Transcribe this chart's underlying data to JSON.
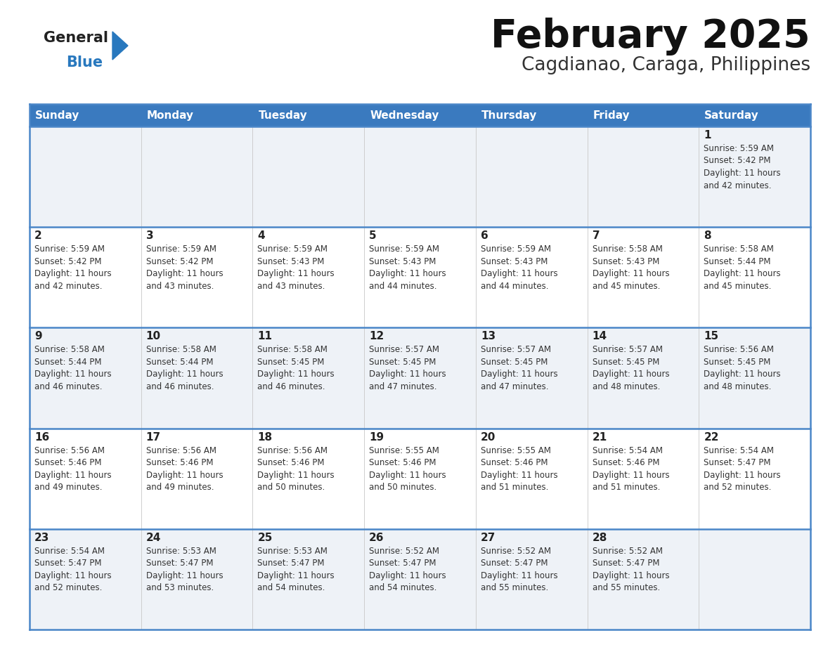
{
  "title": "February 2025",
  "subtitle": "Cagdianao, Caraga, Philippines",
  "days_of_week": [
    "Sunday",
    "Monday",
    "Tuesday",
    "Wednesday",
    "Thursday",
    "Friday",
    "Saturday"
  ],
  "header_bg": "#3a7abf",
  "header_text_color": "#ffffff",
  "row_bg_odd": "#eef2f7",
  "row_bg_even": "#ffffff",
  "cell_border_color": "#4a86c8",
  "day_number_color": "#222222",
  "info_text_color": "#333333",
  "title_color": "#111111",
  "subtitle_color": "#333333",
  "logo_general_color": "#222222",
  "logo_blue_color": "#2878be",
  "calendar_data": [
    {
      "day": 1,
      "col": 6,
      "row": 0,
      "sunrise": "5:59 AM",
      "sunset": "5:42 PM",
      "daylight_hours": 11,
      "daylight_minutes": 42
    },
    {
      "day": 2,
      "col": 0,
      "row": 1,
      "sunrise": "5:59 AM",
      "sunset": "5:42 PM",
      "daylight_hours": 11,
      "daylight_minutes": 42
    },
    {
      "day": 3,
      "col": 1,
      "row": 1,
      "sunrise": "5:59 AM",
      "sunset": "5:42 PM",
      "daylight_hours": 11,
      "daylight_minutes": 43
    },
    {
      "day": 4,
      "col": 2,
      "row": 1,
      "sunrise": "5:59 AM",
      "sunset": "5:43 PM",
      "daylight_hours": 11,
      "daylight_minutes": 43
    },
    {
      "day": 5,
      "col": 3,
      "row": 1,
      "sunrise": "5:59 AM",
      "sunset": "5:43 PM",
      "daylight_hours": 11,
      "daylight_minutes": 44
    },
    {
      "day": 6,
      "col": 4,
      "row": 1,
      "sunrise": "5:59 AM",
      "sunset": "5:43 PM",
      "daylight_hours": 11,
      "daylight_minutes": 44
    },
    {
      "day": 7,
      "col": 5,
      "row": 1,
      "sunrise": "5:58 AM",
      "sunset": "5:43 PM",
      "daylight_hours": 11,
      "daylight_minutes": 45
    },
    {
      "day": 8,
      "col": 6,
      "row": 1,
      "sunrise": "5:58 AM",
      "sunset": "5:44 PM",
      "daylight_hours": 11,
      "daylight_minutes": 45
    },
    {
      "day": 9,
      "col": 0,
      "row": 2,
      "sunrise": "5:58 AM",
      "sunset": "5:44 PM",
      "daylight_hours": 11,
      "daylight_minutes": 46
    },
    {
      "day": 10,
      "col": 1,
      "row": 2,
      "sunrise": "5:58 AM",
      "sunset": "5:44 PM",
      "daylight_hours": 11,
      "daylight_minutes": 46
    },
    {
      "day": 11,
      "col": 2,
      "row": 2,
      "sunrise": "5:58 AM",
      "sunset": "5:45 PM",
      "daylight_hours": 11,
      "daylight_minutes": 46
    },
    {
      "day": 12,
      "col": 3,
      "row": 2,
      "sunrise": "5:57 AM",
      "sunset": "5:45 PM",
      "daylight_hours": 11,
      "daylight_minutes": 47
    },
    {
      "day": 13,
      "col": 4,
      "row": 2,
      "sunrise": "5:57 AM",
      "sunset": "5:45 PM",
      "daylight_hours": 11,
      "daylight_minutes": 47
    },
    {
      "day": 14,
      "col": 5,
      "row": 2,
      "sunrise": "5:57 AM",
      "sunset": "5:45 PM",
      "daylight_hours": 11,
      "daylight_minutes": 48
    },
    {
      "day": 15,
      "col": 6,
      "row": 2,
      "sunrise": "5:56 AM",
      "sunset": "5:45 PM",
      "daylight_hours": 11,
      "daylight_minutes": 48
    },
    {
      "day": 16,
      "col": 0,
      "row": 3,
      "sunrise": "5:56 AM",
      "sunset": "5:46 PM",
      "daylight_hours": 11,
      "daylight_minutes": 49
    },
    {
      "day": 17,
      "col": 1,
      "row": 3,
      "sunrise": "5:56 AM",
      "sunset": "5:46 PM",
      "daylight_hours": 11,
      "daylight_minutes": 49
    },
    {
      "day": 18,
      "col": 2,
      "row": 3,
      "sunrise": "5:56 AM",
      "sunset": "5:46 PM",
      "daylight_hours": 11,
      "daylight_minutes": 50
    },
    {
      "day": 19,
      "col": 3,
      "row": 3,
      "sunrise": "5:55 AM",
      "sunset": "5:46 PM",
      "daylight_hours": 11,
      "daylight_minutes": 50
    },
    {
      "day": 20,
      "col": 4,
      "row": 3,
      "sunrise": "5:55 AM",
      "sunset": "5:46 PM",
      "daylight_hours": 11,
      "daylight_minutes": 51
    },
    {
      "day": 21,
      "col": 5,
      "row": 3,
      "sunrise": "5:54 AM",
      "sunset": "5:46 PM",
      "daylight_hours": 11,
      "daylight_minutes": 51
    },
    {
      "day": 22,
      "col": 6,
      "row": 3,
      "sunrise": "5:54 AM",
      "sunset": "5:47 PM",
      "daylight_hours": 11,
      "daylight_minutes": 52
    },
    {
      "day": 23,
      "col": 0,
      "row": 4,
      "sunrise": "5:54 AM",
      "sunset": "5:47 PM",
      "daylight_hours": 11,
      "daylight_minutes": 52
    },
    {
      "day": 24,
      "col": 1,
      "row": 4,
      "sunrise": "5:53 AM",
      "sunset": "5:47 PM",
      "daylight_hours": 11,
      "daylight_minutes": 53
    },
    {
      "day": 25,
      "col": 2,
      "row": 4,
      "sunrise": "5:53 AM",
      "sunset": "5:47 PM",
      "daylight_hours": 11,
      "daylight_minutes": 54
    },
    {
      "day": 26,
      "col": 3,
      "row": 4,
      "sunrise": "5:52 AM",
      "sunset": "5:47 PM",
      "daylight_hours": 11,
      "daylight_minutes": 54
    },
    {
      "day": 27,
      "col": 4,
      "row": 4,
      "sunrise": "5:52 AM",
      "sunset": "5:47 PM",
      "daylight_hours": 11,
      "daylight_minutes": 55
    },
    {
      "day": 28,
      "col": 5,
      "row": 4,
      "sunrise": "5:52 AM",
      "sunset": "5:47 PM",
      "daylight_hours": 11,
      "daylight_minutes": 55
    }
  ],
  "num_rows": 5,
  "num_cols": 7
}
